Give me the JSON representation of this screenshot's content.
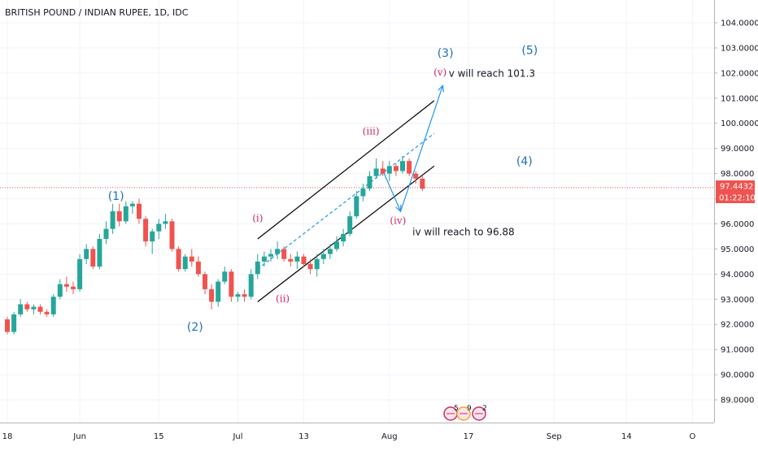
{
  "chart_data": {
    "type": "candlestick",
    "title": "BRITISH POUND / INDIAN RUPEE, 1D, IDC",
    "price_axis": {
      "range": [
        88.5,
        104.5
      ],
      "ticks": [
        "104.0000",
        "103.0000",
        "102.0000",
        "101.0000",
        "100.0000",
        "99.0000",
        "98.0000",
        "97.0000",
        "96.0000",
        "95.0000",
        "94.0000",
        "93.0000",
        "92.0000",
        "91.0000",
        "90.0000",
        "89.0000"
      ],
      "tick_values": [
        104,
        103,
        102,
        101,
        100,
        99,
        98,
        97,
        96,
        95,
        94,
        93,
        92,
        91,
        90,
        89
      ]
    },
    "time_axis": {
      "labels": [
        "18",
        "Jun",
        "15",
        "Jul",
        "13",
        "Aug",
        "17",
        "Sep",
        "14",
        "O"
      ],
      "label_index": [
        0,
        11,
        23,
        35,
        45,
        58,
        70,
        83,
        94,
        104
      ]
    },
    "current_price": {
      "value": 97.4432,
      "label": "97.4432",
      "countdown": "01:22:10",
      "color": "#ef5350"
    },
    "colors": {
      "up": "#26a69a",
      "down": "#ef5350",
      "annotation_blue": "#1e6fb8",
      "annotation_pink": "#d02a6b",
      "projection": "#2196f3"
    },
    "candles": [
      [
        92.2,
        92.3,
        91.6,
        91.7
      ],
      [
        91.7,
        92.5,
        91.6,
        92.4
      ],
      [
        92.4,
        93.0,
        92.3,
        92.8
      ],
      [
        92.8,
        92.9,
        92.5,
        92.6
      ],
      [
        92.6,
        92.8,
        92.4,
        92.7
      ],
      [
        92.7,
        92.8,
        92.4,
        92.5
      ],
      [
        92.5,
        92.6,
        92.3,
        92.4
      ],
      [
        92.4,
        93.2,
        92.3,
        93.1
      ],
      [
        93.1,
        93.8,
        93.0,
        93.6
      ],
      [
        93.6,
        93.9,
        93.3,
        93.5
      ],
      [
        93.5,
        93.7,
        93.2,
        93.4
      ],
      [
        93.4,
        94.8,
        93.3,
        94.6
      ],
      [
        94.6,
        95.2,
        94.4,
        95.0
      ],
      [
        95.0,
        95.1,
        94.2,
        94.3
      ],
      [
        94.3,
        95.6,
        94.2,
        95.4
      ],
      [
        95.4,
        96.1,
        95.2,
        95.8
      ],
      [
        95.8,
        96.8,
        95.6,
        96.5
      ],
      [
        96.5,
        96.8,
        95.9,
        96.1
      ],
      [
        96.1,
        96.9,
        96.0,
        96.7
      ],
      [
        96.7,
        96.9,
        96.4,
        96.8
      ],
      [
        96.8,
        97.0,
        96.0,
        96.2
      ],
      [
        96.2,
        96.3,
        95.1,
        95.3
      ],
      [
        95.3,
        95.8,
        94.8,
        95.7
      ],
      [
        95.7,
        96.2,
        95.4,
        96.0
      ],
      [
        96.0,
        96.4,
        95.8,
        96.1
      ],
      [
        96.1,
        96.2,
        94.9,
        95.0
      ],
      [
        95.0,
        95.1,
        94.1,
        94.2
      ],
      [
        94.2,
        94.8,
        94.1,
        94.7
      ],
      [
        94.7,
        95.0,
        94.3,
        94.5
      ],
      [
        94.5,
        94.7,
        93.9,
        94.0
      ],
      [
        94.0,
        94.1,
        93.2,
        93.4
      ],
      [
        93.4,
        93.6,
        92.6,
        92.9
      ],
      [
        92.9,
        93.8,
        92.7,
        93.7
      ],
      [
        93.7,
        94.3,
        93.6,
        94.1
      ],
      [
        94.1,
        94.2,
        92.9,
        93.1
      ],
      [
        93.1,
        93.3,
        92.9,
        93.2
      ],
      [
        93.2,
        93.4,
        92.9,
        93.1
      ],
      [
        93.1,
        94.2,
        93.0,
        94.0
      ],
      [
        94.0,
        94.8,
        93.8,
        94.5
      ],
      [
        94.5,
        94.9,
        94.3,
        94.7
      ],
      [
        94.7,
        95.0,
        94.5,
        94.8
      ],
      [
        94.8,
        95.3,
        94.6,
        95.0
      ],
      [
        95.0,
        95.1,
        94.5,
        94.6
      ],
      [
        94.6,
        94.8,
        94.3,
        94.5
      ],
      [
        94.5,
        94.9,
        94.2,
        94.7
      ],
      [
        94.7,
        94.8,
        94.3,
        94.4
      ],
      [
        94.4,
        94.6,
        94.0,
        94.2
      ],
      [
        94.2,
        94.8,
        93.9,
        94.6
      ],
      [
        94.6,
        95.0,
        94.4,
        94.8
      ],
      [
        94.8,
        95.2,
        94.6,
        95.0
      ],
      [
        95.0,
        95.5,
        94.9,
        95.3
      ],
      [
        95.3,
        95.8,
        95.1,
        95.6
      ],
      [
        95.6,
        96.5,
        95.5,
        96.3
      ],
      [
        96.3,
        97.3,
        96.2,
        97.1
      ],
      [
        97.1,
        97.6,
        96.9,
        97.4
      ],
      [
        97.4,
        98.1,
        97.3,
        97.9
      ],
      [
        97.9,
        98.6,
        97.8,
        98.2
      ],
      [
        98.2,
        98.5,
        97.9,
        98.0
      ],
      [
        98.0,
        98.5,
        97.7,
        98.3
      ],
      [
        98.3,
        98.4,
        97.9,
        98.1
      ],
      [
        98.1,
        98.7,
        98.0,
        98.5
      ],
      [
        98.5,
        98.6,
        97.9,
        98.0
      ],
      [
        98.0,
        98.1,
        97.6,
        97.8
      ],
      [
        97.8,
        97.9,
        97.3,
        97.4
      ]
    ],
    "annotations": [
      {
        "text": "(1)",
        "kind": "wave",
        "color": "blue",
        "bar": 16.5,
        "price": 96.95
      },
      {
        "text": "(2)",
        "kind": "wave",
        "color": "blue",
        "bar": 28.5,
        "price": 91.75
      },
      {
        "text": "(3)",
        "kind": "wave",
        "color": "blue",
        "bar": 66.5,
        "price": 102.65
      },
      {
        "text": "(4)",
        "kind": "wave",
        "color": "blue",
        "bar": 78.5,
        "price": 98.35
      },
      {
        "text": "(5)",
        "kind": "wave",
        "color": "blue",
        "bar": 79.3,
        "price": 102.75
      },
      {
        "text": "(i)",
        "kind": "subwave",
        "color": "pink",
        "bar": 38.0,
        "price": 96.1
      },
      {
        "text": "(ii)",
        "kind": "subwave",
        "color": "pink",
        "bar": 41.8,
        "price": 92.9
      },
      {
        "text": "(iii)",
        "kind": "subwave",
        "color": "pink",
        "bar": 55.2,
        "price": 99.55
      },
      {
        "text": "(iv)",
        "kind": "subwave",
        "color": "pink",
        "bar": 59.3,
        "price": 96.0
      },
      {
        "text": "(v)",
        "kind": "subwave",
        "color": "pink",
        "bar": 65.7,
        "price": 101.9
      }
    ],
    "notes": [
      {
        "text": "v will reach 101.3",
        "bar": 67.0,
        "price": 101.85
      },
      {
        "text": "iv will reach to 96.88",
        "bar": 61.5,
        "price": 95.55
      }
    ],
    "channel": {
      "upper": [
        [
          38.0,
          95.4
        ],
        [
          64.8,
          100.9
        ]
      ],
      "lower": [
        [
          38.0,
          92.9
        ],
        [
          64.8,
          98.3
        ]
      ],
      "mid": [
        [
          38.0,
          94.2
        ],
        [
          64.8,
          99.6
        ]
      ]
    },
    "projection": [
      [
        57.2,
        98.0
      ],
      [
        59.7,
        96.5
      ],
      [
        66.1,
        101.5
      ]
    ],
    "event_badges": [
      {
        "text": "5"
      },
      {
        "text": "9"
      },
      {
        "text": "2"
      }
    ]
  }
}
